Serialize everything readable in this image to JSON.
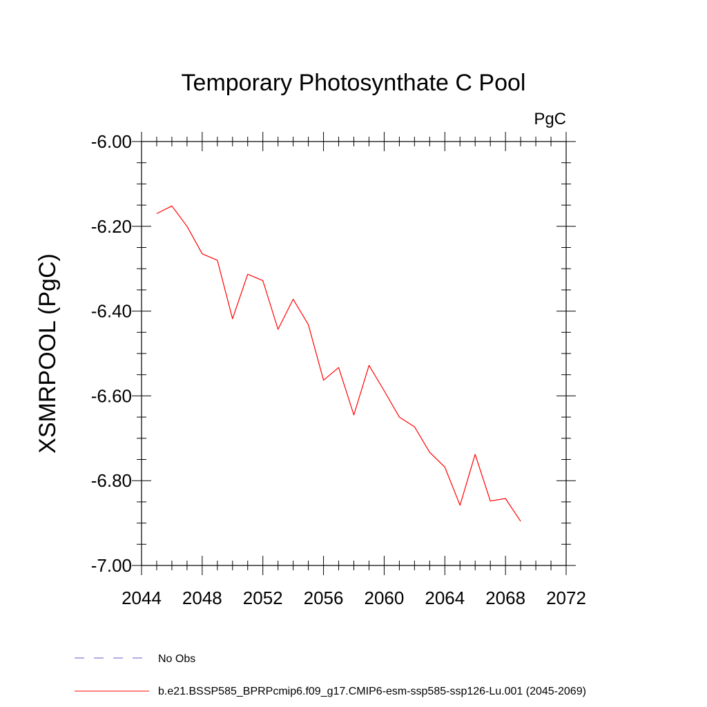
{
  "chart_data": {
    "type": "line",
    "title": "Temporary Photosynthate C Pool",
    "units": "PgC",
    "ylabel": "XSMRPOOL  (PgC)",
    "xlabel": "",
    "xlim": [
      2044,
      2072
    ],
    "ylim": [
      -7.0,
      -6.0
    ],
    "x_ticks": [
      2044,
      2048,
      2052,
      2056,
      2060,
      2064,
      2068,
      2072
    ],
    "x_tick_labels": [
      "2044",
      "2048",
      "2052",
      "2056",
      "2060",
      "2064",
      "2068",
      "2072"
    ],
    "y_ticks": [
      -7.0,
      -6.8,
      -6.6,
      -6.4,
      -6.2,
      -6.0
    ],
    "y_tick_labels": [
      "-7.00",
      "-6.80",
      "-6.60",
      "-6.40",
      "-6.20",
      "-6.00"
    ],
    "x_minor_step": 1,
    "y_minor_step": 0.05,
    "grid": false,
    "legend_position": "bottom-left",
    "series": [
      {
        "name": "b.e21.BSSP585_BPRPcmip6.f09_g17.CMIP6-esm-ssp585-ssp126-Lu.001 (2045-2069)",
        "color": "#ff0000",
        "dash": "solid",
        "x": [
          2045,
          2046,
          2047,
          2048,
          2049,
          2050,
          2051,
          2052,
          2053,
          2054,
          2055,
          2056,
          2057,
          2058,
          2059,
          2060,
          2061,
          2062,
          2063,
          2064,
          2065,
          2066,
          2067,
          2068,
          2069
        ],
        "values": [
          -6.17,
          -6.152,
          -6.2,
          -6.265,
          -6.28,
          -6.418,
          -6.313,
          -6.328,
          -6.443,
          -6.372,
          -6.432,
          -6.563,
          -6.533,
          -6.645,
          -6.528,
          -6.588,
          -6.65,
          -6.673,
          -6.733,
          -6.768,
          -6.858,
          -6.738,
          -6.848,
          -6.842,
          -6.896
        ]
      }
    ],
    "legend": [
      {
        "label": "No Obs",
        "color": "#6a5acd",
        "dash": "dashed"
      },
      {
        "label": "b.e21.BSSP585_BPRPcmip6.f09_g17.CMIP6-esm-ssp585-ssp126-Lu.001 (2045-2069)",
        "color": "#ff0000",
        "dash": "solid"
      }
    ]
  }
}
